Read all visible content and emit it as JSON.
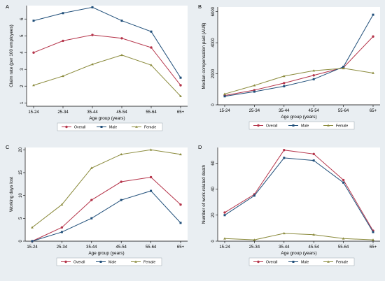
{
  "colors": {
    "overall": "#b5344a",
    "male": "#1f4e79",
    "female": "#8a8a3b"
  },
  "chart_data": [
    {
      "type": "line",
      "panel_letter": "A",
      "title": "",
      "xlabel": "Age group (years)",
      "ylabel": "Claim rate (per 100 employees)",
      "categories": [
        "15-24",
        "25-34",
        "35-44",
        "45-54",
        "55-64",
        "65+"
      ],
      "ylim": [
        0.8,
        6.8
      ],
      "yticks": [
        1,
        2,
        3,
        4,
        5,
        6
      ],
      "legend": "bottom",
      "series": [
        {
          "name": "Overall",
          "color": "overall",
          "values": [
            4.0,
            4.7,
            5.05,
            4.85,
            4.3,
            2.05
          ]
        },
        {
          "name": "Male",
          "color": "male",
          "values": [
            5.9,
            6.35,
            6.7,
            5.9,
            5.25,
            2.5
          ]
        },
        {
          "name": "Female",
          "color": "female",
          "values": [
            2.05,
            2.6,
            3.3,
            3.85,
            3.25,
            1.4
          ]
        }
      ]
    },
    {
      "type": "line",
      "panel_letter": "B",
      "title": "",
      "xlabel": "Age group (years)",
      "ylabel": "Median compensation paid (AU$)",
      "categories": [
        "15-24",
        "25-34",
        "35-44",
        "45-54",
        "55-64",
        "65+"
      ],
      "ylim": [
        0,
        6300
      ],
      "yticks": [
        0,
        2000,
        4000,
        6000
      ],
      "legend": "bottom",
      "series": [
        {
          "name": "Overall",
          "color": "overall",
          "values": [
            600,
            950,
            1400,
            1900,
            2400,
            4400
          ]
        },
        {
          "name": "Male",
          "color": "male",
          "values": [
            550,
            850,
            1200,
            1650,
            2450,
            5800
          ]
        },
        {
          "name": "Female",
          "color": "female",
          "values": [
            700,
            1250,
            1850,
            2200,
            2350,
            2050
          ]
        }
      ]
    },
    {
      "type": "line",
      "panel_letter": "C",
      "title": "",
      "xlabel": "Age group (years)",
      "ylabel": "Working days lost",
      "categories": [
        "15-24",
        "25-34",
        "35-44",
        "45-54",
        "55-64",
        "65+"
      ],
      "ylim": [
        0,
        20.5
      ],
      "yticks": [
        0,
        5,
        10,
        15,
        20
      ],
      "legend": "bottom",
      "series": [
        {
          "name": "Overall",
          "color": "overall",
          "values": [
            0,
            3,
            9,
            13,
            14,
            8
          ]
        },
        {
          "name": "Male",
          "color": "male",
          "values": [
            0,
            2,
            5,
            9,
            11,
            4
          ]
        },
        {
          "name": "Female",
          "color": "female",
          "values": [
            3,
            8,
            16,
            19,
            20,
            19
          ]
        }
      ]
    },
    {
      "type": "line",
      "panel_letter": "D",
      "title": "",
      "xlabel": "Age group (years)",
      "ylabel": "Number of work-related death",
      "categories": [
        "15-24",
        "25-34",
        "35-44",
        "45-54",
        "55-64",
        "65+"
      ],
      "ylim": [
        0,
        72
      ],
      "yticks": [
        0,
        20,
        40,
        60
      ],
      "legend": "bottom",
      "series": [
        {
          "name": "Overall",
          "color": "overall",
          "values": [
            22,
            36,
            70,
            67,
            47,
            8
          ]
        },
        {
          "name": "Male",
          "color": "male",
          "values": [
            20,
            35,
            64,
            62,
            45,
            7
          ]
        },
        {
          "name": "Female",
          "color": "female",
          "values": [
            2,
            1,
            6,
            5,
            2,
            1
          ]
        }
      ]
    }
  ]
}
